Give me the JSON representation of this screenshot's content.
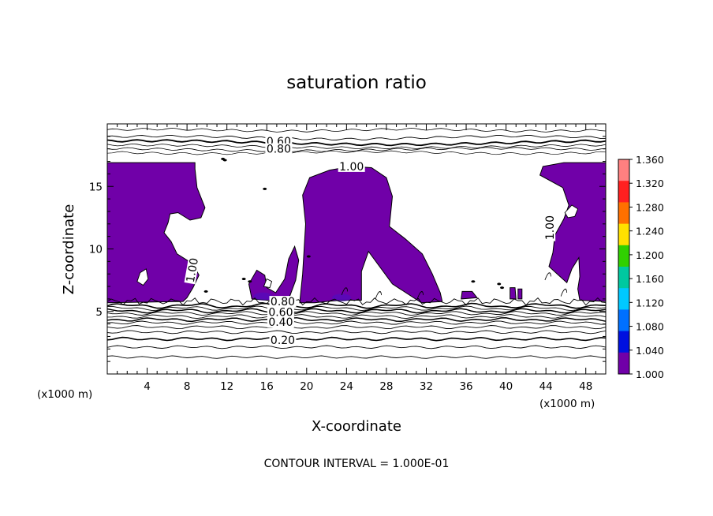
{
  "chart_data": {
    "type": "contour",
    "title": "saturation ratio",
    "xlabel": "X-coordinate",
    "ylabel": "Z-coordinate",
    "x_unit": "(x1000 m)",
    "z_unit": "(x1000 m)",
    "xlim": [
      0,
      50
    ],
    "ylim": [
      0,
      20
    ],
    "xticks": [
      4,
      8,
      12,
      16,
      20,
      24,
      28,
      32,
      36,
      40,
      44,
      48
    ],
    "yticks": [
      5,
      10,
      15
    ],
    "contour_interval": "CONTOUR INTERVAL = 1.000E-01",
    "shaded_threshold": 1.0,
    "shaded_color": "#7000a8",
    "contour_levels_labeled": [
      {
        "label": "0.60",
        "x": 17.2,
        "z": 18.6
      },
      {
        "label": "0.80",
        "x": 17.2,
        "z": 18.0
      },
      {
        "label": "1.00",
        "x": 24.5,
        "z": 16.6
      },
      {
        "label": "1.00",
        "x": 8.5,
        "z": 8.3,
        "angle": -80
      },
      {
        "label": "1.00",
        "x": 44.4,
        "z": 11.7,
        "angle": -90
      },
      {
        "label": "0.80",
        "x": 17.6,
        "z": 5.8
      },
      {
        "label": "0.60",
        "x": 17.4,
        "z": 4.95
      },
      {
        "label": "0.40",
        "x": 17.4,
        "z": 4.15
      },
      {
        "label": "0.20",
        "x": 17.6,
        "z": 2.7
      }
    ],
    "colorbar": {
      "levels": [
        "1.360",
        "1.320",
        "1.280",
        "1.240",
        "1.200",
        "1.160",
        "1.120",
        "1.080",
        "1.040",
        "1.000"
      ],
      "colors": [
        "#ff8080",
        "#ff2020",
        "#ff7000",
        "#ffe000",
        "#30d000",
        "#00c8a0",
        "#00c8ff",
        "#0070ff",
        "#0010e0",
        "#7000a8"
      ]
    }
  }
}
